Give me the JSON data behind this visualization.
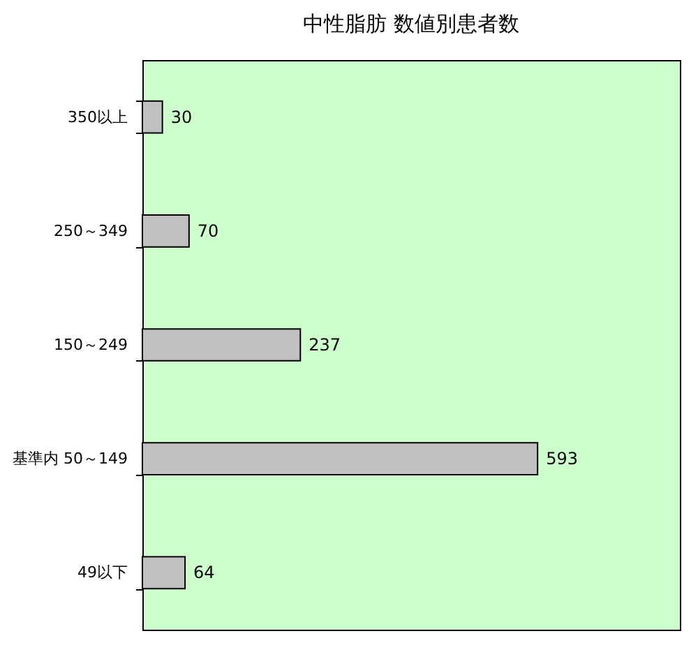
{
  "chart_data": {
    "type": "bar",
    "orientation": "horizontal",
    "title": "中性脂肪 数値別患者数",
    "categories": [
      "350以上",
      "250～349",
      "150～249",
      "基準内 50～149",
      "49以下"
    ],
    "values": [
      30,
      70,
      237,
      593,
      64
    ],
    "color": "#c0c0c0",
    "data_labels": true,
    "grid": false
  }
}
